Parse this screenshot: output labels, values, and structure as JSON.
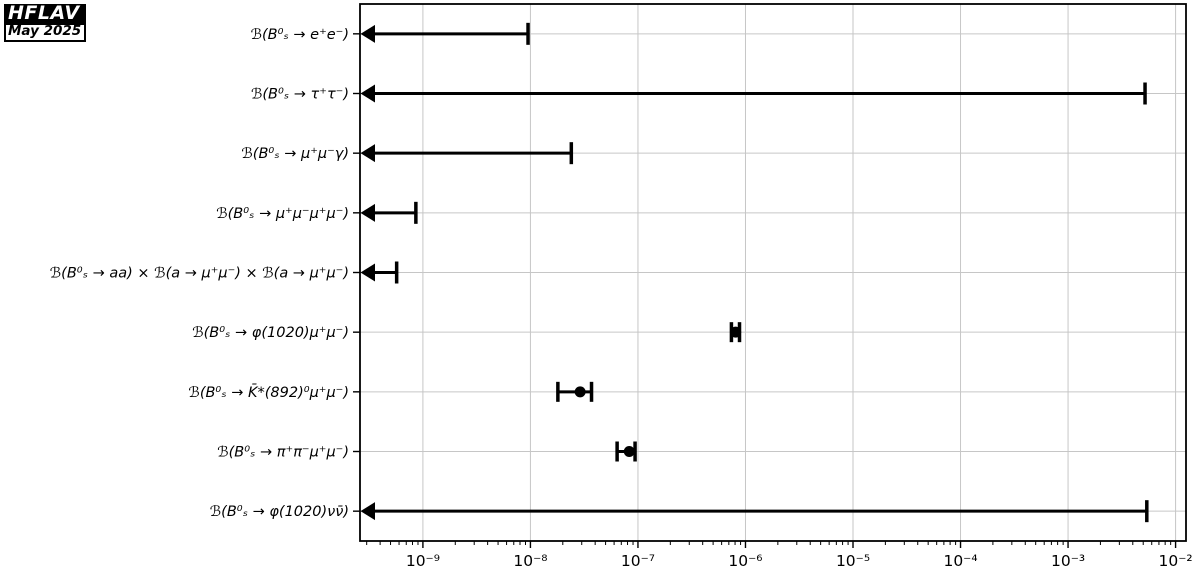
{
  "logo": {
    "name": "HFLAV",
    "date": "May 2025"
  },
  "chart_data": {
    "type": "scatter",
    "orientation": "horizontal",
    "title": "",
    "xlabel": "",
    "ylabel": "",
    "x_scale": "log",
    "x_min": 2.6e-10,
    "x_max": 0.0125,
    "grid": true,
    "legend": "none",
    "x_tick_exponents": [
      -9,
      -8,
      -7,
      -6,
      -5,
      -4,
      -3,
      -2
    ],
    "x_tick_labels": [
      "10⁻⁹",
      "10⁻⁸",
      "10⁻⁷",
      "10⁻⁶",
      "10⁻⁵",
      "10⁻⁴",
      "10⁻³",
      "10⁻²"
    ],
    "rows": [
      {
        "label": "ℬ(B⁰ₛ → e⁺e⁻)",
        "kind": "upper_limit",
        "limit": 9.5e-09
      },
      {
        "label": "ℬ(B⁰ₛ → τ⁺τ⁻)",
        "kind": "upper_limit",
        "limit": 0.0052
      },
      {
        "label": "ℬ(B⁰ₛ → μ⁺μ⁻γ)",
        "kind": "upper_limit",
        "limit": 2.4e-08
      },
      {
        "label": "ℬ(B⁰ₛ → μ⁺μ⁻μ⁺μ⁻)",
        "kind": "upper_limit",
        "limit": 8.6e-10
      },
      {
        "label": "ℬ(B⁰ₛ → aa) × ℬ(a → μ⁺μ⁻) × ℬ(a → μ⁺μ⁻)",
        "kind": "upper_limit",
        "limit": 5.7e-10
      },
      {
        "label": "ℬ(B⁰ₛ → φ(1020)μ⁺μ⁻)",
        "kind": "measurement",
        "value": 8.1e-07,
        "low": 7.4e-07,
        "high": 8.8e-07
      },
      {
        "label": "ℬ(B⁰ₛ → K̄*(892)⁰μ⁺μ⁻)",
        "kind": "measurement",
        "value": 2.9e-08,
        "low": 1.8e-08,
        "high": 3.7e-08
      },
      {
        "label": "ℬ(B⁰ₛ → π⁺π⁻μ⁺μ⁻)",
        "kind": "measurement",
        "value": 8.3e-08,
        "low": 6.4e-08,
        "high": 9.4e-08
      },
      {
        "label": "ℬ(B⁰ₛ → φ(1020)νν̄)",
        "kind": "upper_limit",
        "limit": 0.0054
      }
    ],
    "colors": {
      "data": "#000000",
      "grid": "#c6c6c6",
      "spine": "#000000",
      "background": "#ffffff"
    }
  }
}
